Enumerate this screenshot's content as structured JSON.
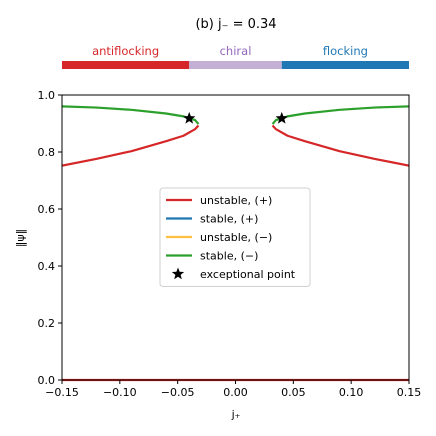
{
  "chart_data": {
    "type": "line",
    "title": "(b) j₋ = 0.34",
    "xlabel": "j₊",
    "ylabel": "‖ψ‖",
    "xlim": [
      -0.15,
      0.15
    ],
    "ylim": [
      0.0,
      1.0
    ],
    "x_ticks": [
      "−0.15",
      "−0.10",
      "−0.05",
      "0.00",
      "0.05",
      "0.10",
      "0.15"
    ],
    "x_tick_values": [
      -0.15,
      -0.1,
      -0.05,
      0.0,
      0.05,
      0.1,
      0.15
    ],
    "y_ticks": [
      "0.0",
      "0.2",
      "0.4",
      "0.6",
      "0.8",
      "1.0"
    ],
    "y_tick_values": [
      0.0,
      0.2,
      0.4,
      0.6,
      0.8,
      1.0
    ],
    "grid": false,
    "legend_position": "center",
    "phase_bar": [
      {
        "label": "antiflocking",
        "x_start": -0.15,
        "x_end": -0.04,
        "color": "#d62728"
      },
      {
        "label": "chiral",
        "x_start": -0.04,
        "x_end": 0.04,
        "color": "#c5b0d5",
        "text_color": "#9467bd"
      },
      {
        "label": "flocking",
        "x_start": 0.04,
        "x_end": 0.15,
        "color": "#1f77b4"
      }
    ],
    "series": [
      {
        "name": "unstable, (+)",
        "color": "#d62728",
        "branches": [
          {
            "x": [
              -0.15,
              -0.12,
              -0.09,
              -0.06,
              -0.045,
              -0.035,
              -0.032
            ],
            "y": [
              0.752,
              0.776,
              0.803,
              0.838,
              0.857,
              0.88,
              0.893
            ]
          },
          {
            "x": [
              0.032,
              0.035,
              0.045,
              0.06,
              0.09,
              0.12,
              0.15
            ],
            "y": [
              0.893,
              0.88,
              0.857,
              0.838,
              0.803,
              0.776,
              0.752
            ]
          },
          {
            "x": [
              -0.15,
              0.15
            ],
            "y": [
              0.0,
              0.0
            ]
          }
        ]
      },
      {
        "name": "stable, (+)",
        "color": "#1f77b4",
        "branches": []
      },
      {
        "name": "unstable, (−)",
        "color": "#ffbf3f",
        "branches": []
      },
      {
        "name": "stable, (−)",
        "color": "#2ca02c",
        "branches": [
          {
            "x": [
              -0.15,
              -0.12,
              -0.09,
              -0.06,
              -0.045,
              -0.035,
              -0.032
            ],
            "y": [
              0.96,
              0.956,
              0.948,
              0.935,
              0.925,
              0.912,
              0.898
            ]
          },
          {
            "x": [
              0.032,
              0.035,
              0.045,
              0.06,
              0.09,
              0.12,
              0.15
            ],
            "y": [
              0.898,
              0.912,
              0.925,
              0.935,
              0.948,
              0.956,
              0.96
            ]
          }
        ]
      },
      {
        "name": "exceptional point",
        "marker": "star",
        "color": "#000000",
        "points": {
          "x": [
            -0.04,
            0.04
          ],
          "y": [
            0.918,
            0.918
          ]
        }
      }
    ]
  }
}
